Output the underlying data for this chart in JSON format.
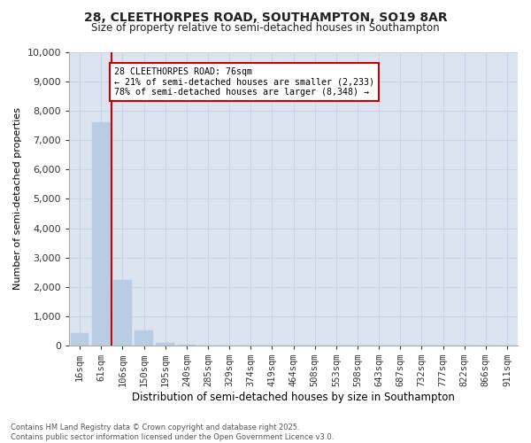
{
  "title_line1": "28, CLEETHORPES ROAD, SOUTHAMPTON, SO19 8AR",
  "title_line2": "Size of property relative to semi-detached houses in Southampton",
  "xlabel": "Distribution of semi-detached houses by size in Southampton",
  "ylabel": "Number of semi-detached properties",
  "categories": [
    "16sqm",
    "61sqm",
    "106sqm",
    "150sqm",
    "195sqm",
    "240sqm",
    "285sqm",
    "329sqm",
    "374sqm",
    "419sqm",
    "464sqm",
    "508sqm",
    "553sqm",
    "598sqm",
    "643sqm",
    "687sqm",
    "732sqm",
    "777sqm",
    "822sqm",
    "866sqm",
    "911sqm"
  ],
  "values": [
    430,
    7600,
    2233,
    520,
    100,
    30,
    0,
    0,
    0,
    0,
    0,
    0,
    0,
    0,
    0,
    0,
    0,
    0,
    0,
    0,
    0
  ],
  "bar_color": "#b8cce4",
  "grid_color": "#c8d4e8",
  "bg_color": "#dce4f0",
  "property_label": "28 CLEETHORPES ROAD: 76sqm",
  "pct_smaller": 21,
  "pct_larger": 78,
  "n_smaller": 2233,
  "n_larger": 8348,
  "vline_color": "#cc0000",
  "vline_x": 1.5,
  "annotation_box_color": "#cc0000",
  "ylim": [
    0,
    10000
  ],
  "yticks": [
    0,
    1000,
    2000,
    3000,
    4000,
    5000,
    6000,
    7000,
    8000,
    9000,
    10000
  ],
  "footer_line1": "Contains HM Land Registry data © Crown copyright and database right 2025.",
  "footer_line2": "Contains public sector information licensed under the Open Government Licence v3.0."
}
